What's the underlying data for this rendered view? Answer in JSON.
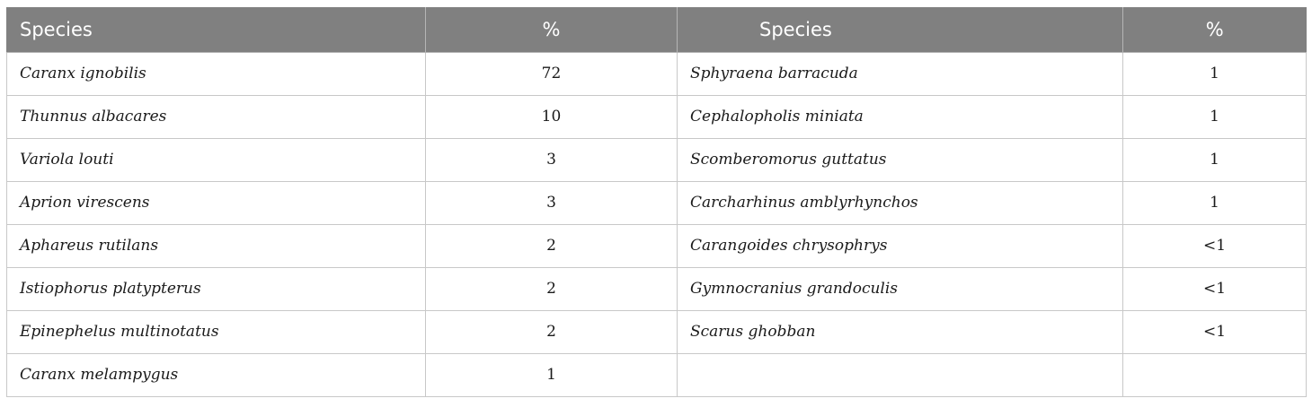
{
  "header": {
    "col1": "Species",
    "col2": "%",
    "col3": "Species",
    "col4": "%"
  },
  "rows": [
    {
      "species_left": "Caranx ignobilis",
      "pct_left": "72",
      "species_right": "Sphyraena barracuda",
      "pct_right": "1"
    },
    {
      "species_left": "Thunnus albacares",
      "pct_left": "10",
      "species_right": "Cephalopholis miniata",
      "pct_right": "1"
    },
    {
      "species_left": "Variola louti",
      "pct_left": "3",
      "species_right": "Scomberomorus guttatus",
      "pct_right": "1"
    },
    {
      "species_left": "Aprion virescens",
      "pct_left": "3",
      "species_right": "Carcharhinus amblyrhynchos",
      "pct_right": "1"
    },
    {
      "species_left": "Aphareus rutilans",
      "pct_left": "2",
      "species_right": "Carangoides chrysophrys",
      "pct_right": "<1"
    },
    {
      "species_left": "Istiophorus platypterus",
      "pct_left": "2",
      "species_right": "Gymnocranius grandoculis",
      "pct_right": "<1"
    },
    {
      "species_left": "Epinephelus multinotatus",
      "pct_left": "2",
      "species_right": "Scarus ghobban",
      "pct_right": "<1"
    },
    {
      "species_left": "Caranx melampygus",
      "pct_left": "1",
      "species_right": "",
      "pct_right": ""
    }
  ],
  "colors": {
    "header_background": "#808080",
    "header_text": "#ffffff",
    "grid_line": "#c8c8c8"
  }
}
